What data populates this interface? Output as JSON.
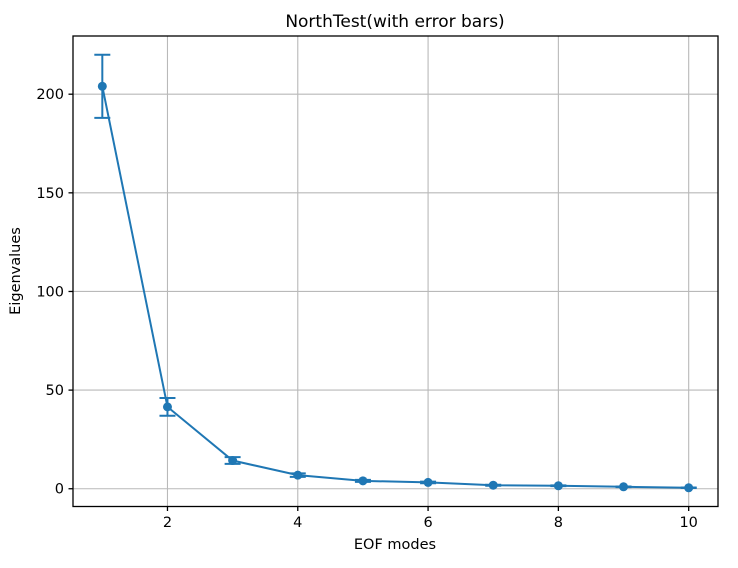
{
  "chart_data": {
    "type": "line",
    "title": "NorthTest(with error bars)",
    "xlabel": "EOF modes",
    "ylabel": "Eigenvalues",
    "x": [
      1,
      2,
      3,
      4,
      5,
      6,
      7,
      8,
      9,
      10
    ],
    "y": [
      204,
      41.5,
      14.3,
      6.9,
      4.0,
      3.2,
      1.8,
      1.5,
      1.0,
      0.5
    ],
    "yerr": [
      16,
      4.5,
      1.7,
      0.9,
      0.5,
      0.4,
      0.25,
      0.2,
      0.15,
      0.1
    ],
    "xticks": [
      2,
      4,
      6,
      8,
      10
    ],
    "yticks": [
      0,
      50,
      100,
      150,
      200
    ],
    "xlim": [
      0.55,
      10.45
    ],
    "ylim": [
      -9,
      229.5
    ],
    "grid": true,
    "legend": null,
    "line_color": "#1f77b4",
    "grid_color": "#b9b9b9",
    "spine_color": "#000000",
    "marker": "circle",
    "error_bar_capsize_px": 8
  }
}
